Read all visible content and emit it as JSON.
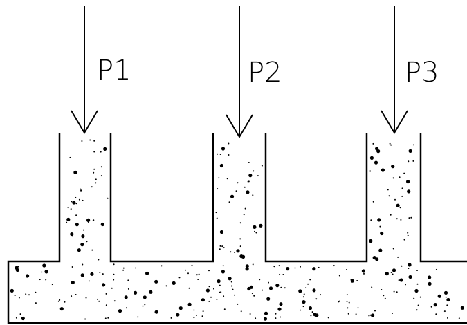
{
  "loads": [
    {
      "label": "P1"
    },
    {
      "label": "P2"
    },
    {
      "label": "P3"
    }
  ]
}
